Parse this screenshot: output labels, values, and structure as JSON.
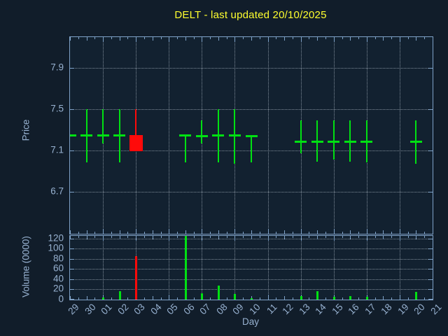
{
  "title": "DELT - last updated 20/10/2025",
  "colors": {
    "background": "#111d2a",
    "plot_background": "#122130",
    "frame": "#7fa2c8",
    "grid": "#c8d4e0",
    "label_text": "#97b1d0",
    "title_text": "#ffff2e",
    "up_candle": "#00e112",
    "down_candle": "#ff0a0a"
  },
  "chart_data": [
    {
      "type": "candlestick",
      "title": "DELT - last updated 20/10/2025",
      "xlabel": "Day",
      "ylabel": "Price",
      "x_categories": [
        "29",
        "30",
        "01",
        "02",
        "03",
        "04",
        "05",
        "06",
        "07",
        "08",
        "09",
        "10",
        "11",
        "12",
        "13",
        "14",
        "15",
        "16",
        "17",
        "18",
        "19",
        "20",
        "21"
      ],
      "x_gridline_days": [
        "01",
        "03",
        "05",
        "07",
        "09",
        "11",
        "13",
        "15",
        "17",
        "19"
      ],
      "ylim": [
        6.29,
        8.2
      ],
      "yticks": [
        6.7,
        7.1,
        7.5,
        7.9
      ],
      "grid": true,
      "candles": [
        {
          "day": "29",
          "open": 7.25,
          "high": 7.25,
          "low": 7.25,
          "close": 7.25,
          "color": "green"
        },
        {
          "day": "30",
          "open": 7.25,
          "high": 7.5,
          "low": 6.98,
          "close": 7.25,
          "color": "green"
        },
        {
          "day": "01",
          "open": 7.25,
          "high": 7.5,
          "low": 7.17,
          "close": 7.25,
          "color": "green"
        },
        {
          "day": "02",
          "open": 7.25,
          "high": 7.5,
          "low": 6.98,
          "close": 7.25,
          "color": "green"
        },
        {
          "day": "03",
          "open": 7.25,
          "high": 7.5,
          "low": 7.09,
          "close": 7.09,
          "color": "red"
        },
        {
          "day": "06",
          "open": 7.25,
          "high": 7.25,
          "low": 6.98,
          "close": 7.25,
          "color": "green"
        },
        {
          "day": "07",
          "open": 7.24,
          "high": 7.39,
          "low": 7.17,
          "close": 7.24,
          "color": "green"
        },
        {
          "day": "08",
          "open": 7.25,
          "high": 7.5,
          "low": 6.98,
          "close": 7.25,
          "color": "green"
        },
        {
          "day": "09",
          "open": 7.25,
          "high": 7.5,
          "low": 6.97,
          "close": 7.25,
          "color": "green"
        },
        {
          "day": "10",
          "open": 7.24,
          "high": 7.24,
          "low": 6.98,
          "close": 7.24,
          "color": "green"
        },
        {
          "day": "13",
          "open": 7.19,
          "high": 7.39,
          "low": 7.07,
          "close": 7.19,
          "color": "green"
        },
        {
          "day": "14",
          "open": 7.19,
          "high": 7.39,
          "low": 6.99,
          "close": 7.19,
          "color": "green"
        },
        {
          "day": "15",
          "open": 7.19,
          "high": 7.39,
          "low": 7.01,
          "close": 7.19,
          "color": "green"
        },
        {
          "day": "16",
          "open": 7.19,
          "high": 7.39,
          "low": 6.99,
          "close": 7.19,
          "color": "green"
        },
        {
          "day": "17",
          "open": 7.19,
          "high": 7.39,
          "low": 6.98,
          "close": 7.19,
          "color": "green"
        },
        {
          "day": "20",
          "open": 7.19,
          "high": 7.39,
          "low": 6.97,
          "close": 7.19,
          "color": "green"
        }
      ]
    },
    {
      "type": "bar",
      "ylabel": "Volume (0000)",
      "ylim": [
        0,
        125
      ],
      "yticks": [
        0,
        20,
        40,
        60,
        80,
        100,
        120
      ],
      "grid": true,
      "bars": [
        {
          "day": "01",
          "value": 4,
          "color": "green"
        },
        {
          "day": "02",
          "value": 16,
          "color": "green"
        },
        {
          "day": "03",
          "value": 85,
          "color": "red"
        },
        {
          "day": "06",
          "value": 125,
          "color": "green"
        },
        {
          "day": "07",
          "value": 12,
          "color": "green"
        },
        {
          "day": "08",
          "value": 27,
          "color": "green"
        },
        {
          "day": "09",
          "value": 11,
          "color": "green"
        },
        {
          "day": "10",
          "value": 3,
          "color": "green"
        },
        {
          "day": "13",
          "value": 7,
          "color": "green"
        },
        {
          "day": "14",
          "value": 17,
          "color": "green"
        },
        {
          "day": "15",
          "value": 6,
          "color": "green"
        },
        {
          "day": "16",
          "value": 7,
          "color": "green"
        },
        {
          "day": "17",
          "value": 6,
          "color": "green"
        },
        {
          "day": "20",
          "value": 15,
          "color": "green"
        }
      ]
    }
  ]
}
